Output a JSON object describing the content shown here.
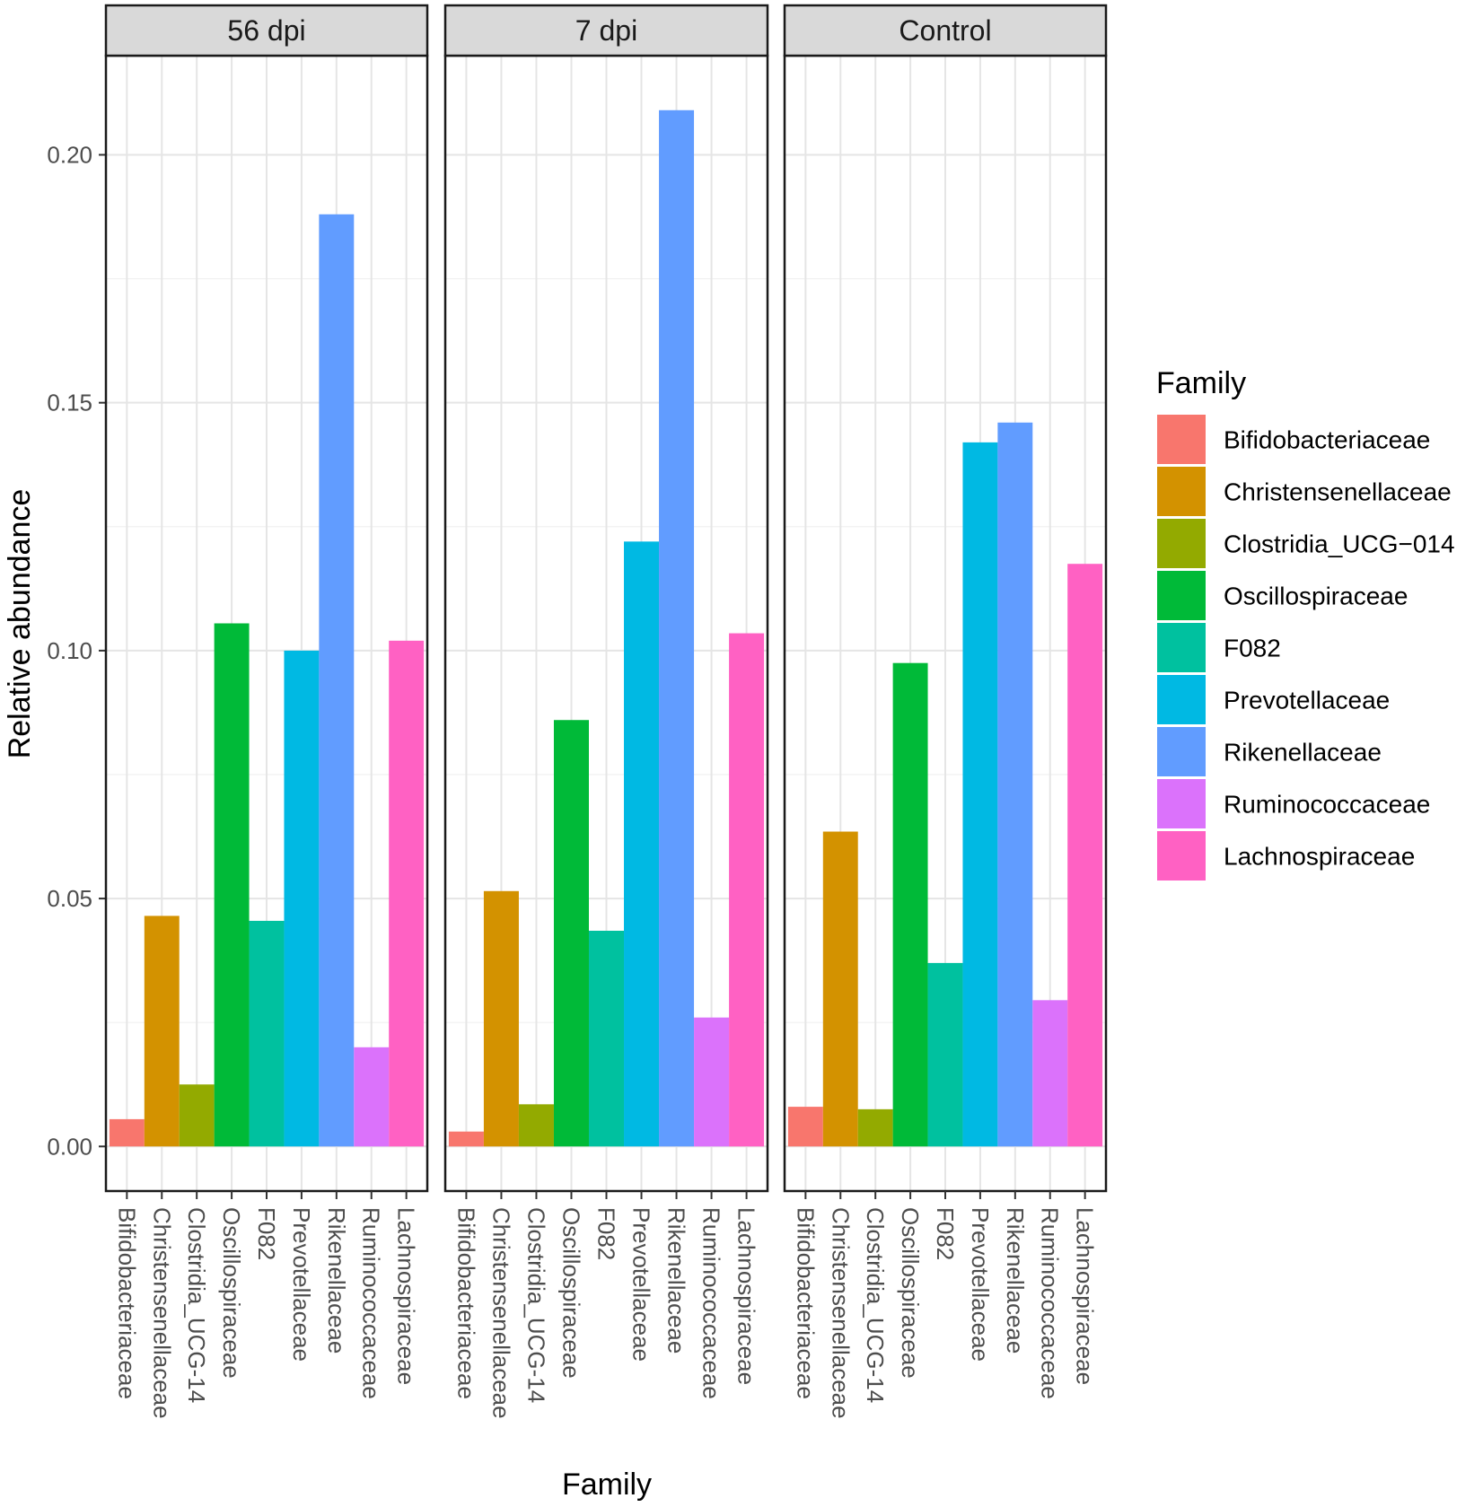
{
  "chart_data": {
    "type": "bar",
    "title": "",
    "xlabel": "Family",
    "ylabel": "Relative abundance",
    "ylim": [
      -0.009,
      0.22
    ],
    "yticks": [
      0.0,
      0.05,
      0.1,
      0.15,
      0.2
    ],
    "ytick_labels": [
      "0.00",
      "0.05",
      "0.10",
      "0.15",
      "0.20"
    ],
    "grid": true,
    "legend_position": "right",
    "legend_title": "Family",
    "legend_entries": [
      "Bifidobacteriaceae",
      "Christensenellaceae",
      "Clostridia_UCG−014",
      "Oscillospiraceae",
      "F082",
      "Prevotellaceae",
      "Rikenellaceae",
      "Ruminococcaceae",
      "Lachnospiraceae"
    ],
    "categories": [
      "Bifidobacteriaceae",
      "Christensenellaceae",
      "Clostridia_UCG-14",
      "Oscillospiraceae",
      "F082",
      "Prevotellaceae",
      "Rikenellaceae",
      "Ruminococcaceae",
      "Lachnospiraceae"
    ],
    "colors": [
      "#F8766D",
      "#D39200",
      "#93AA00",
      "#00BA38",
      "#00C19F",
      "#00B9E3",
      "#619CFF",
      "#DB72FB",
      "#FF61C3"
    ],
    "panels": [
      {
        "name": "56 dpi",
        "values": [
          0.0055,
          0.0465,
          0.0125,
          0.1055,
          0.0455,
          0.1,
          0.188,
          0.02,
          0.102
        ]
      },
      {
        "name": "7 dpi",
        "values": [
          0.003,
          0.0515,
          0.0085,
          0.086,
          0.0435,
          0.122,
          0.209,
          0.026,
          0.1035
        ]
      },
      {
        "name": "Control",
        "values": [
          0.008,
          0.0635,
          0.0075,
          0.0975,
          0.037,
          0.142,
          0.146,
          0.0295,
          0.1175
        ]
      }
    ]
  }
}
